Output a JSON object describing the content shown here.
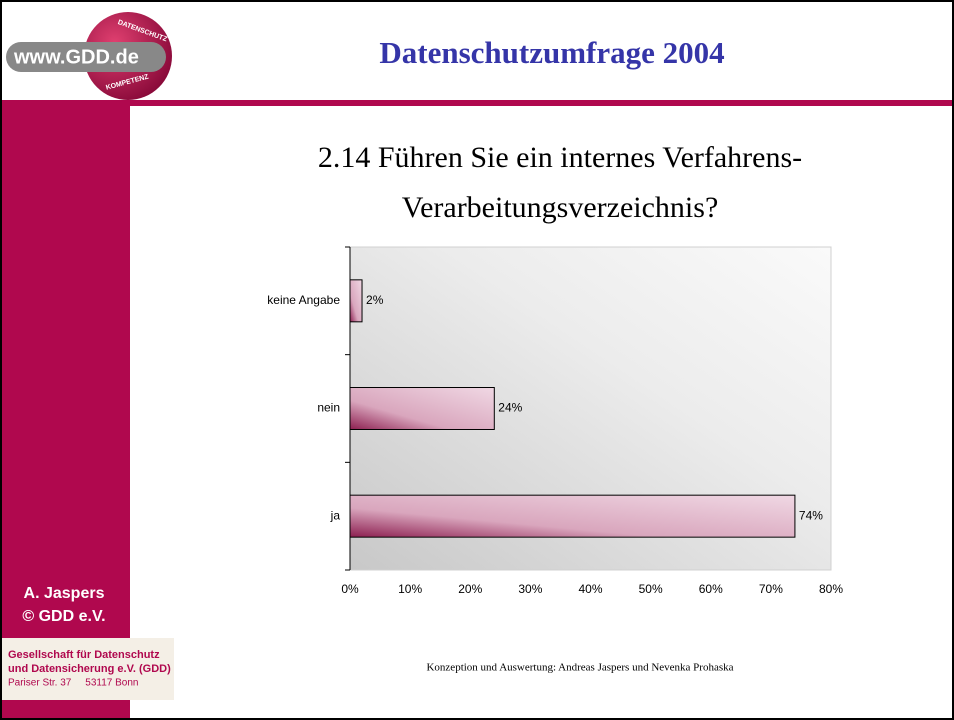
{
  "header": {
    "title": "Datenschutzumfrage 2004",
    "logo": {
      "text": "www.GDD.de",
      "ring_top": "DATENSCHUTZ",
      "ring_bottom": "KOMPETENZ"
    }
  },
  "sidebar": {
    "author": "A. Jaspers",
    "copyright": "© GDD e.V.",
    "address": [
      "Gesellschaft für Datenschutz",
      "und Datensicherung e.V. (GDD)",
      "Pariser Str. 37     53117 Bonn"
    ]
  },
  "footer": "Konzeption und Auswertung: Andreas Jaspers und Nevenka Prohaska",
  "chart_data": {
    "type": "bar",
    "orientation": "horizontal",
    "title": [
      "2.14 Führen Sie ein internes Verfahrens-",
      "Verarbeitungsverzeichnis?"
    ],
    "categories": [
      "keine Angabe",
      "nein",
      "ja"
    ],
    "values": [
      2,
      24,
      74
    ],
    "value_labels": [
      "2%",
      "24%",
      "74%"
    ],
    "color": "#a0305f",
    "xlim": [
      0,
      80
    ],
    "xticks": [
      {
        "value": 0,
        "label": "0%"
      },
      {
        "value": 10,
        "label": "10%"
      },
      {
        "value": 20,
        "label": "20%"
      },
      {
        "value": 30,
        "label": "30%"
      },
      {
        "value": 40,
        "label": "40%"
      },
      {
        "value": 50,
        "label": "50%"
      },
      {
        "value": 60,
        "label": "60%"
      },
      {
        "value": 70,
        "label": "70%"
      },
      {
        "value": 80,
        "label": "80%"
      }
    ],
    "grid": false
  }
}
